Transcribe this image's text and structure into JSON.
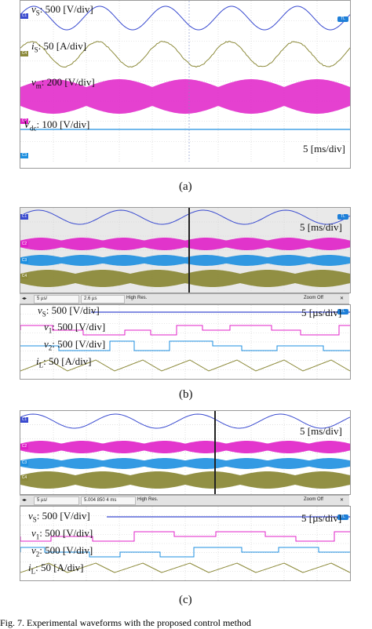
{
  "panel_a": {
    "tag": "(a)",
    "labels": {
      "vs": "v",
      "vs_sub": "S",
      "vs_rest": ": 500 [V/div]",
      "is": "i",
      "is_sub": "S",
      "is_rest": ": 50 [A/div]",
      "vm": "v",
      "vm_sub": "m",
      "vm_rest": ": 200 [V/div]",
      "vdc": "V",
      "vdc_sub": "dc",
      "vdc_rest": ": 100 [V/div]",
      "time": "5 [ms/div]"
    },
    "chips": [
      "C1",
      "C4",
      "C2",
      "C3"
    ],
    "tl": "TL"
  },
  "panel_b": {
    "tag": "(b)",
    "top_time": "5 [ms/div]",
    "bar": {
      "timebase": "5 µs/",
      "position": "2.6 µs",
      "mode": "High Res.",
      "zoom": "Zoom Off",
      "close": "✕"
    },
    "labels": {
      "vs": "v",
      "vs_sub": "S",
      "vs_rest": ": 500 [V/div]",
      "v1": "v",
      "v1_sub": "1",
      "v1_rest": ": 500 [V/div]",
      "v2": "v",
      "v2_sub": "2",
      "v2_rest": ": 500 [V/div]",
      "il": "i",
      "il_sub": "L",
      "il_rest": ": 50 [A/div]",
      "time": "5 [µs/div]"
    },
    "chips": [
      "C1",
      "C2",
      "C3",
      "C4"
    ],
    "tl": "TL"
  },
  "panel_c": {
    "tag": "(c)",
    "top_time": "5 [ms/div]",
    "bar": {
      "timebase": "5 µs/",
      "position": "5.004 850 4 ms",
      "mode": "High Res.",
      "zoom": "Zoom Off",
      "close": "✕"
    },
    "labels": {
      "vs": "v",
      "vs_sub": "S",
      "vs_rest": ": 500 [V/div]",
      "v1": "v",
      "v1_sub": "1",
      "v1_rest": ": 500 [V/div]",
      "v2": "v",
      "v2_sub": "2",
      "v2_rest": ": 500 [V/div]",
      "il": "i",
      "il_sub": "L",
      "il_rest": ": 50 [A/div]",
      "time": "5 [µs/div]"
    },
    "chips": [
      "C1",
      "C2",
      "C3",
      "C4"
    ],
    "tl": "TL"
  },
  "caption_fragment": "Fig. 7.   Experimental waveforms with the proposed control method",
  "colors": {
    "blue": "#3a4bd0",
    "olive": "#8c8a3a",
    "magenta": "#e020c8",
    "cyan": "#1d8fe0"
  }
}
